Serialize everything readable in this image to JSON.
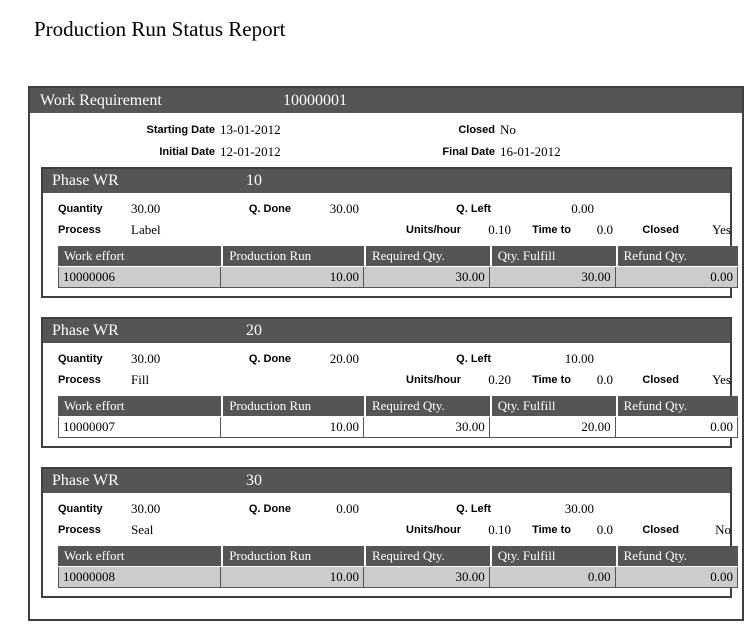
{
  "title": "Production Run Status Report",
  "report": {
    "header": {
      "label": "Work Requirement",
      "value": "10000001"
    },
    "info": {
      "starting_date_label": "Starting Date",
      "starting_date": "13-01-2012",
      "closed_label": "Closed",
      "closed": "No",
      "initial_date_label": "Initial Date",
      "initial_date": "12-01-2012",
      "final_date_label": "Final Date",
      "final_date": "16-01-2012"
    },
    "phase_labels": {
      "header": "Phase WR",
      "quantity": "Quantity",
      "q_done": "Q. Done",
      "q_left": "Q. Left",
      "process": "Process",
      "units_hour": "Units/hour",
      "time_to": "Time to",
      "closed": "Closed"
    },
    "table_columns": [
      "Work effort",
      "Production Run",
      "Required Qty.",
      "Qty. Fulfill",
      "Refund Qty."
    ],
    "phases": [
      {
        "number": "10",
        "quantity": "30.00",
        "q_done": "30.00",
        "q_left": "0.00",
        "process": "Label",
        "units_hour": "0.10",
        "time_to": "0.0",
        "closed": "Yes",
        "rows": [
          {
            "work_effort": "10000006",
            "production_run": "10.00",
            "required_qty": "30.00",
            "qty_fulfill": "30.00",
            "refund_qty": "0.00",
            "shaded": true
          }
        ]
      },
      {
        "number": "20",
        "quantity": "30.00",
        "q_done": "20.00",
        "q_left": "10.00",
        "process": "Fill",
        "units_hour": "0.20",
        "time_to": "0.0",
        "closed": "Yes",
        "rows": [
          {
            "work_effort": "10000007",
            "production_run": "10.00",
            "required_qty": "30.00",
            "qty_fulfill": "20.00",
            "refund_qty": "0.00",
            "shaded": false
          }
        ]
      },
      {
        "number": "30",
        "quantity": "30.00",
        "q_done": "0.00",
        "q_left": "30.00",
        "process": "Seal",
        "units_hour": "0.10",
        "time_to": "0.0",
        "closed": "No",
        "rows": [
          {
            "work_effort": "10000008",
            "production_run": "10.00",
            "required_qty": "30.00",
            "qty_fulfill": "0.00",
            "refund_qty": "0.00",
            "shaded": true
          }
        ]
      }
    ]
  },
  "colors": {
    "bar_background": "#555555",
    "bar_text": "#ffffff",
    "shaded_row": "#cccccc",
    "border": "#3f3f3f"
  }
}
